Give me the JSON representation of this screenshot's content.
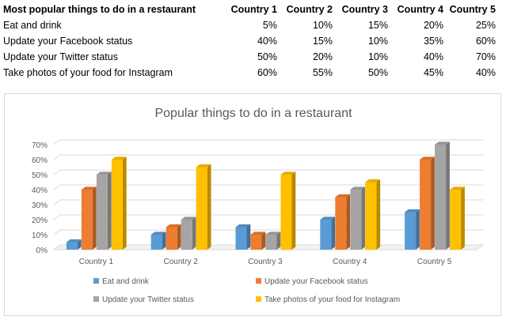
{
  "table": {
    "header": [
      "Most popular things to do in a restaurant",
      "Country 1",
      "Country 2",
      "Country 3",
      "Country 4",
      "Country 5"
    ],
    "rows": [
      {
        "label": "Eat and drink",
        "values": [
          "5%",
          "10%",
          "15%",
          "20%",
          "25%"
        ]
      },
      {
        "label": "Update your Facebook status",
        "values": [
          "40%",
          "15%",
          "10%",
          "35%",
          "60%"
        ]
      },
      {
        "label": "Update your Twitter status",
        "values": [
          "50%",
          "20%",
          "10%",
          "40%",
          "70%"
        ]
      },
      {
        "label": "Take photos of your food for Instagram",
        "values": [
          "60%",
          "55%",
          "50%",
          "45%",
          "40%"
        ]
      }
    ]
  },
  "chart_data": {
    "type": "bar",
    "title": "Popular things to do in a restaurant",
    "categories": [
      "Country 1",
      "Country 2",
      "Country 3",
      "Country 4",
      "Country 5"
    ],
    "series": [
      {
        "name": "Eat and drink",
        "values": [
          5,
          10,
          15,
          20,
          25
        ],
        "color": "#5b9bd5"
      },
      {
        "name": "Update your Facebook status",
        "values": [
          40,
          15,
          10,
          35,
          60
        ],
        "color": "#ed7d31"
      },
      {
        "name": "Update your Twitter status",
        "values": [
          50,
          20,
          10,
          40,
          70
        ],
        "color": "#a5a5a5"
      },
      {
        "name": "Take photos of your food for Instagram",
        "values": [
          60,
          55,
          50,
          45,
          40
        ],
        "color": "#ffc000"
      }
    ],
    "ylim": [
      0,
      70
    ],
    "yticks": [
      "0%",
      "10%",
      "20%",
      "30%",
      "40%",
      "50%",
      "60%",
      "70%"
    ],
    "grid": true,
    "legend": "bottom",
    "style": "3d-clustered-column"
  }
}
